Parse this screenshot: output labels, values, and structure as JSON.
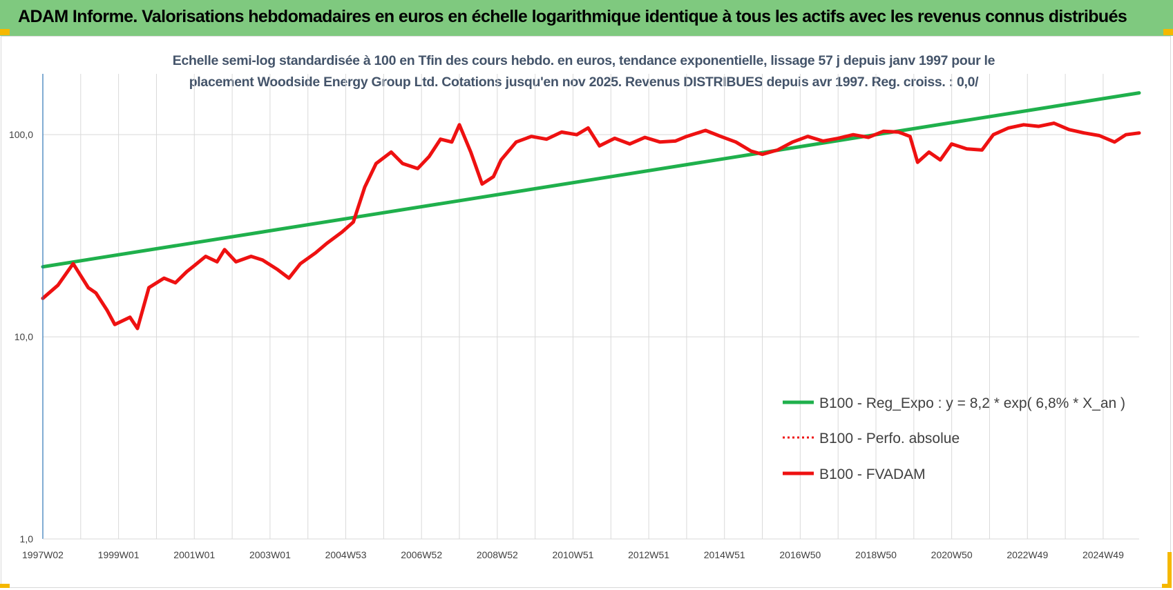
{
  "banner": {
    "title": "ADAM Informe. Valorisations hebdomadaires en euros en échelle logarithmique identique à tous les actifs avec les revenus connus distribués"
  },
  "colors": {
    "banner": "#7fc97f",
    "accent_corner": "#f5b800",
    "regression": "#1fb04c",
    "fvadam": "#ee1111",
    "title_text": "#44546a"
  },
  "chart_data": {
    "type": "line",
    "title_line1": "Echelle semi-log standardisée à 100 en Tfin des cours hebdo. en euros, tendance exponentielle, lissage 57 j depuis janv 1997 pour le",
    "title_line2": "placement Woodside Energy Group Ltd. Cotations jusqu'en nov 2025. Revenus DISTRIBUES depuis avr 1997. Reg. croiss. : 0,0/",
    "y_scale": "log",
    "ylim": [
      1,
      200
    ],
    "y_ticks": [
      {
        "value": 1,
        "label": "1,0"
      },
      {
        "value": 10,
        "label": "10,0"
      },
      {
        "value": 100,
        "label": "100,0"
      }
    ],
    "xlim": [
      1997.0,
      2025.95
    ],
    "x_ticks": [
      {
        "value": 1997.0,
        "label": "1997W02"
      },
      {
        "value": 1999.0,
        "label": "1999W01"
      },
      {
        "value": 2001.0,
        "label": "2001W01"
      },
      {
        "value": 2003.0,
        "label": "2003W01"
      },
      {
        "value": 2005.0,
        "label": "2004W53"
      },
      {
        "value": 2007.0,
        "label": "2006W52"
      },
      {
        "value": 2009.0,
        "label": "2008W52"
      },
      {
        "value": 2011.0,
        "label": "2010W51"
      },
      {
        "value": 2013.0,
        "label": "2012W51"
      },
      {
        "value": 2015.0,
        "label": "2014W51"
      },
      {
        "value": 2017.0,
        "label": "2016W50"
      },
      {
        "value": 2019.0,
        "label": "2018W50"
      },
      {
        "value": 2021.0,
        "label": "2020W50"
      },
      {
        "value": 2023.0,
        "label": "2022W49"
      },
      {
        "value": 2025.0,
        "label": "2024W49"
      }
    ],
    "grid": true,
    "legend_position": "bottom-right",
    "series": [
      {
        "name": "B100 - Reg_Expo : y = 8,2 * exp( 6,8% *  X_an )",
        "style": "solid",
        "color": "#1fb04c",
        "x": [
          1997.0,
          2025.95
        ],
        "y": [
          22.2,
          161
        ]
      },
      {
        "name": "B100 - Perfo. absolue",
        "style": "dotted",
        "color": "#ee1111",
        "x": [],
        "y": []
      },
      {
        "name": "B100 - FVADAM",
        "style": "solid",
        "color": "#ee1111",
        "x": [
          1997.0,
          1997.4,
          1997.8,
          1998.2,
          1998.4,
          1998.7,
          1998.9,
          1999.3,
          1999.5,
          1999.8,
          2000.2,
          2000.5,
          2000.8,
          2001.0,
          2001.3,
          2001.6,
          2001.8,
          2002.1,
          2002.5,
          2002.8,
          2003.2,
          2003.5,
          2003.8,
          2004.2,
          2004.5,
          2004.9,
          2005.2,
          2005.5,
          2005.8,
          2006.2,
          2006.5,
          2006.9,
          2007.2,
          2007.5,
          2007.8,
          2008.0,
          2008.3,
          2008.6,
          2008.9,
          2009.1,
          2009.5,
          2009.9,
          2010.3,
          2010.7,
          2011.1,
          2011.4,
          2011.7,
          2012.1,
          2012.5,
          2012.9,
          2013.3,
          2013.7,
          2014.0,
          2014.5,
          2014.9,
          2015.3,
          2015.7,
          2016.0,
          2016.4,
          2016.8,
          2017.2,
          2017.6,
          2018.0,
          2018.4,
          2018.8,
          2019.2,
          2019.6,
          2019.9,
          2020.1,
          2020.4,
          2020.7,
          2021.0,
          2021.4,
          2021.8,
          2022.1,
          2022.5,
          2022.9,
          2023.3,
          2023.7,
          2024.1,
          2024.5,
          2024.9,
          2025.3,
          2025.6,
          2025.95
        ],
        "y": [
          15.5,
          18,
          23,
          17.5,
          16.5,
          13.5,
          11.5,
          12.5,
          11,
          17.5,
          19.5,
          18.5,
          21,
          22.5,
          25,
          23.5,
          27,
          23.5,
          25,
          24,
          21.5,
          19.5,
          23,
          26,
          29,
          33,
          37,
          55,
          72,
          82,
          72,
          68,
          78,
          95,
          92,
          112,
          82,
          57,
          62,
          75,
          92,
          98,
          95,
          103,
          100,
          108,
          88,
          96,
          90,
          97,
          92,
          93,
          98,
          105,
          98,
          92,
          83,
          80,
          84,
          92,
          98,
          93,
          96,
          100,
          97,
          104,
          103,
          98,
          73,
          82,
          75,
          90,
          85,
          84,
          100,
          108,
          112,
          110,
          114,
          106,
          102,
          99,
          92,
          100,
          102
        ]
      }
    ]
  }
}
